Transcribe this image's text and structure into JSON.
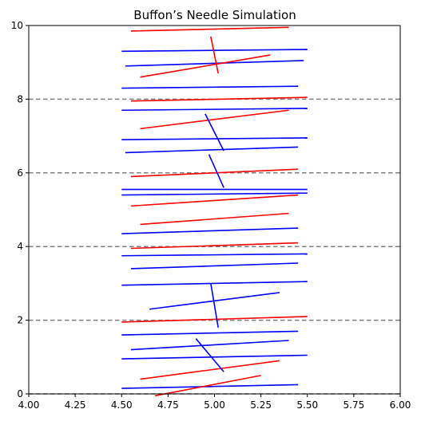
{
  "chart_data": {
    "type": "scatter",
    "title": "Buffon’s Needle Simulation",
    "xlabel": "",
    "ylabel": "",
    "xlim": [
      4.0,
      6.0
    ],
    "ylim": [
      0,
      10
    ],
    "x_ticks": [
      4.0,
      4.25,
      4.5,
      4.75,
      5.0,
      5.25,
      5.5,
      5.75,
      6.0
    ],
    "x_tick_labels": [
      "4.00",
      "4.25",
      "4.50",
      "4.75",
      "5.00",
      "5.25",
      "5.50",
      "5.75",
      "6.00"
    ],
    "y_ticks": [
      0,
      2,
      4,
      6,
      8,
      10
    ],
    "y_tick_labels": [
      "0",
      "2",
      "4",
      "6",
      "8",
      "10"
    ],
    "grid": false,
    "reference_lines": {
      "y": [
        0,
        2,
        4,
        6,
        8
      ],
      "color": "#808080",
      "style": "dashed"
    },
    "colors": {
      "crossing": "#ff0000",
      "non_crossing": "#0000ff"
    },
    "needles": [
      {
        "x1": 4.5,
        "y1": 9.3,
        "x2": 5.5,
        "y2": 9.35,
        "c": "b"
      },
      {
        "x1": 4.55,
        "y1": 9.85,
        "x2": 5.4,
        "y2": 9.95,
        "c": "r"
      },
      {
        "x1": 4.52,
        "y1": 8.9,
        "x2": 5.48,
        "y2": 9.05,
        "c": "b"
      },
      {
        "x1": 4.6,
        "y1": 8.6,
        "x2": 5.3,
        "y2": 9.2,
        "c": "r"
      },
      {
        "x1": 4.5,
        "y1": 8.3,
        "x2": 5.45,
        "y2": 8.35,
        "c": "b"
      },
      {
        "x1": 4.55,
        "y1": 7.95,
        "x2": 5.5,
        "y2": 8.05,
        "c": "r"
      },
      {
        "x1": 4.5,
        "y1": 7.7,
        "x2": 5.5,
        "y2": 7.75,
        "c": "b"
      },
      {
        "x1": 4.6,
        "y1": 7.2,
        "x2": 5.4,
        "y2": 7.7,
        "c": "r"
      },
      {
        "x1": 4.5,
        "y1": 6.9,
        "x2": 5.5,
        "y2": 6.95,
        "c": "b"
      },
      {
        "x1": 4.52,
        "y1": 6.55,
        "x2": 5.45,
        "y2": 6.7,
        "c": "b"
      },
      {
        "x1": 4.55,
        "y1": 5.9,
        "x2": 5.45,
        "y2": 6.1,
        "c": "r"
      },
      {
        "x1": 4.5,
        "y1": 5.55,
        "x2": 5.5,
        "y2": 5.55,
        "c": "b"
      },
      {
        "x1": 4.5,
        "y1": 5.4,
        "x2": 5.5,
        "y2": 5.45,
        "c": "b"
      },
      {
        "x1": 4.55,
        "y1": 5.1,
        "x2": 5.45,
        "y2": 5.4,
        "c": "r"
      },
      {
        "x1": 4.6,
        "y1": 4.6,
        "x2": 5.4,
        "y2": 4.9,
        "c": "r"
      },
      {
        "x1": 4.5,
        "y1": 4.35,
        "x2": 5.45,
        "y2": 4.5,
        "c": "b"
      },
      {
        "x1": 4.55,
        "y1": 3.95,
        "x2": 5.45,
        "y2": 4.1,
        "c": "r"
      },
      {
        "x1": 4.5,
        "y1": 3.75,
        "x2": 5.5,
        "y2": 3.8,
        "c": "b"
      },
      {
        "x1": 4.55,
        "y1": 3.4,
        "x2": 5.45,
        "y2": 3.55,
        "c": "b"
      },
      {
        "x1": 4.5,
        "y1": 2.95,
        "x2": 5.5,
        "y2": 3.05,
        "c": "b"
      },
      {
        "x1": 4.65,
        "y1": 2.3,
        "x2": 5.35,
        "y2": 2.75,
        "c": "b"
      },
      {
        "x1": 4.5,
        "y1": 1.95,
        "x2": 5.5,
        "y2": 2.1,
        "c": "r"
      },
      {
        "x1": 4.5,
        "y1": 1.6,
        "x2": 5.45,
        "y2": 1.7,
        "c": "b"
      },
      {
        "x1": 4.55,
        "y1": 1.2,
        "x2": 5.4,
        "y2": 1.45,
        "c": "b"
      },
      {
        "x1": 4.5,
        "y1": 0.95,
        "x2": 5.5,
        "y2": 1.05,
        "c": "b"
      },
      {
        "x1": 4.6,
        "y1": 0.4,
        "x2": 5.35,
        "y2": 0.9,
        "c": "r"
      },
      {
        "x1": 4.5,
        "y1": 0.15,
        "x2": 5.45,
        "y2": 0.25,
        "c": "b"
      },
      {
        "x1": 4.68,
        "y1": -0.05,
        "x2": 5.25,
        "y2": 0.5,
        "c": "r"
      },
      {
        "x1": 4.98,
        "y1": 9.7,
        "x2": 5.02,
        "y2": 8.7,
        "c": "r"
      },
      {
        "x1": 4.95,
        "y1": 7.6,
        "x2": 5.05,
        "y2": 6.6,
        "c": "b"
      },
      {
        "x1": 4.97,
        "y1": 6.5,
        "x2": 5.05,
        "y2": 5.6,
        "c": "b"
      },
      {
        "x1": 4.98,
        "y1": 3.0,
        "x2": 5.02,
        "y2": 1.8,
        "c": "b"
      },
      {
        "x1": 4.9,
        "y1": 1.5,
        "x2": 5.05,
        "y2": 0.6,
        "c": "b"
      }
    ]
  }
}
